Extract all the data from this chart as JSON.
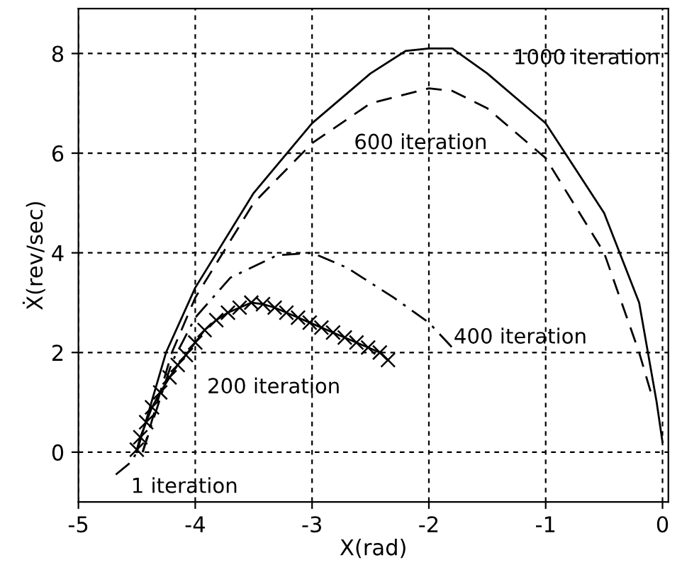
{
  "chart_data": {
    "type": "line",
    "xlabel": "X(rad)",
    "ylabel": "Ẋ(rev/sec)",
    "xlim": [
      -5,
      0.05
    ],
    "ylim": [
      -1,
      8.9
    ],
    "xticks": [
      -5,
      -4,
      -3,
      -2,
      -1,
      0
    ],
    "yticks": [
      0,
      2,
      4,
      6,
      8
    ],
    "grid": true,
    "series": [
      {
        "color": "#000000",
        "line_style": "solid",
        "marker": "none",
        "x": [
          -4.5,
          -4.25,
          -4,
          -3.5,
          -3,
          -2.5,
          -2.2,
          -2,
          -1.8,
          -1.5,
          -1,
          -0.5,
          -0.2,
          -0.05,
          0
        ],
        "values": [
          0,
          2,
          3.3,
          5.2,
          6.6,
          7.6,
          8.05,
          8.1,
          8.1,
          7.6,
          6.6,
          4.8,
          3,
          1,
          0.2
        ]
      },
      {
        "color": "#000000",
        "line_style": "dashed",
        "marker": "none",
        "x": [
          -4.45,
          -4.2,
          -4,
          -3.5,
          -3,
          -2.5,
          -2,
          -1.8,
          -1.5,
          -1,
          -0.5,
          -0.2,
          -0.1
        ],
        "values": [
          0,
          2,
          3.1,
          5,
          6.2,
          7,
          7.3,
          7.25,
          6.9,
          5.9,
          4,
          2,
          1.2
        ]
      },
      {
        "color": "#000000",
        "line_style": "dashdot",
        "marker": "none",
        "x": [
          -4.45,
          -4.2,
          -4,
          -3.7,
          -3.3,
          -3,
          -2.7,
          -2.3,
          -2,
          -1.8
        ],
        "values": [
          0,
          1.8,
          2.7,
          3.5,
          3.95,
          4,
          3.7,
          3.1,
          2.6,
          2.1
        ]
      },
      {
        "color": "#000000",
        "line_style": "solid",
        "marker": "cross",
        "x": [
          -4.5,
          -4.47,
          -4.42,
          -4.37,
          -4.3,
          -4.22,
          -4.15,
          -4.08,
          -4,
          -3.92,
          -3.82,
          -3.72,
          -3.62,
          -3.52,
          -3.42,
          -3.32,
          -3.22,
          -3.12,
          -3.02,
          -2.92,
          -2.82,
          -2.72,
          -2.62,
          -2.52,
          -2.42,
          -2.35
        ],
        "values": [
          0.05,
          0.3,
          0.6,
          0.9,
          1.2,
          1.5,
          1.75,
          1.95,
          2.2,
          2.45,
          2.65,
          2.8,
          2.9,
          3,
          2.97,
          2.9,
          2.8,
          2.7,
          2.6,
          2.5,
          2.4,
          2.3,
          2.2,
          2.1,
          2,
          1.85
        ]
      },
      {
        "color": "#000000",
        "line_style": "dashdot",
        "marker": "none",
        "x": [
          -4.68,
          -4.55,
          -4.5
        ],
        "values": [
          -0.45,
          -0.2,
          0
        ]
      }
    ],
    "annotations": [
      "1000 iteration",
      "600 iteration",
      "400 iteration",
      "200 iteration",
      "1 iteration"
    ]
  }
}
